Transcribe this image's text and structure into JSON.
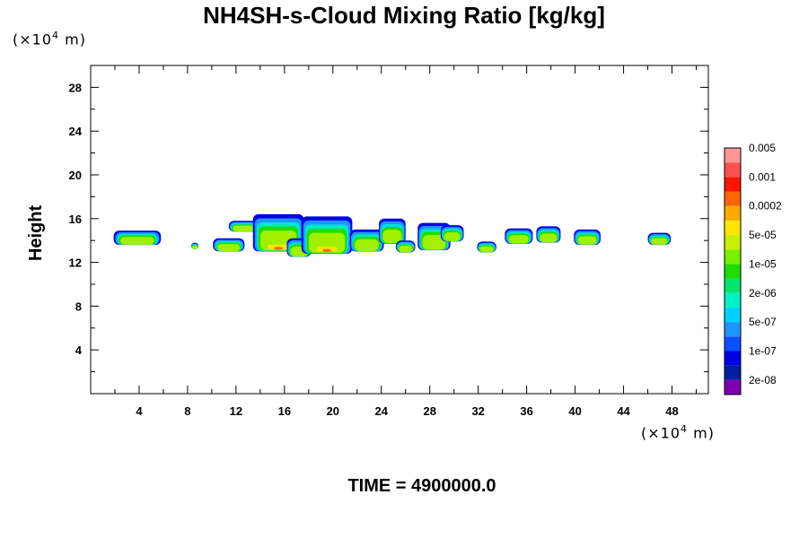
{
  "chart_data": {
    "type": "heatmap",
    "title": "NH4SH-s-Cloud Mixing Ratio [kg/kg]",
    "ylabel": "Height",
    "x_unit": {
      "prefix": "(×10",
      "exp": "4",
      "suffix": " m)"
    },
    "y_unit": {
      "prefix": "(×10",
      "exp": "4",
      "suffix": " m)"
    },
    "xlim": [
      0,
      51
    ],
    "ylim": [
      0,
      30
    ],
    "x_ticks": [
      4,
      8,
      12,
      16,
      20,
      24,
      28,
      32,
      36,
      40,
      44,
      48
    ],
    "y_ticks": [
      4,
      8,
      12,
      16,
      20,
      24,
      28
    ],
    "grid": false,
    "legend_placement": "right",
    "colorbar": {
      "colors": [
        "#7a00b0",
        "#001ea0",
        "#0000e6",
        "#0a50ff",
        "#1e96ff",
        "#00d2ff",
        "#00f0c8",
        "#00e66e",
        "#1edc00",
        "#78f000",
        "#c8f000",
        "#ffe600",
        "#ffaa00",
        "#ff6400",
        "#ff1400",
        "#ff5050",
        "#ff9696"
      ],
      "labels": [
        "2e-08",
        "1e-07",
        "5e-07",
        "2e-06",
        "1e-05",
        "5e-05",
        "0.0002",
        "0.001",
        "0.005"
      ]
    },
    "clouds": [
      {
        "x0": 1.9,
        "x1": 5.8,
        "top": 14.9,
        "bottom": 13.6
      },
      {
        "x0": 8.3,
        "x1": 8.9,
        "top": 13.8,
        "bottom": 13.2
      },
      {
        "x0": 10.1,
        "x1": 12.7,
        "top": 14.2,
        "bottom": 13.0
      },
      {
        "x0": 11.4,
        "x1": 13.8,
        "top": 15.8,
        "bottom": 14.8
      },
      {
        "x0": 13.4,
        "x1": 17.6,
        "top": 16.4,
        "bottom": 13.0
      },
      {
        "x0": 16.2,
        "x1": 18.2,
        "top": 14.2,
        "bottom": 12.5
      },
      {
        "x0": 17.4,
        "x1": 21.6,
        "top": 16.2,
        "bottom": 12.8
      },
      {
        "x0": 21.4,
        "x1": 24.2,
        "top": 15.0,
        "bottom": 13.0
      },
      {
        "x0": 23.8,
        "x1": 26.0,
        "top": 16.0,
        "bottom": 13.7
      },
      {
        "x0": 25.2,
        "x1": 26.8,
        "top": 14.0,
        "bottom": 12.9
      },
      {
        "x0": 27.0,
        "x1": 29.7,
        "top": 15.6,
        "bottom": 13.1
      },
      {
        "x0": 28.9,
        "x1": 30.8,
        "top": 15.4,
        "bottom": 13.9
      },
      {
        "x0": 31.9,
        "x1": 33.5,
        "top": 13.9,
        "bottom": 12.9
      },
      {
        "x0": 34.2,
        "x1": 36.5,
        "top": 15.1,
        "bottom": 13.7
      },
      {
        "x0": 36.8,
        "x1": 38.8,
        "top": 15.3,
        "bottom": 13.8
      },
      {
        "x0": 39.9,
        "x1": 42.1,
        "top": 15.0,
        "bottom": 13.6
      },
      {
        "x0": 46.0,
        "x1": 47.9,
        "top": 14.7,
        "bottom": 13.6
      }
    ]
  },
  "time_label": "TIME = 4900000.0"
}
